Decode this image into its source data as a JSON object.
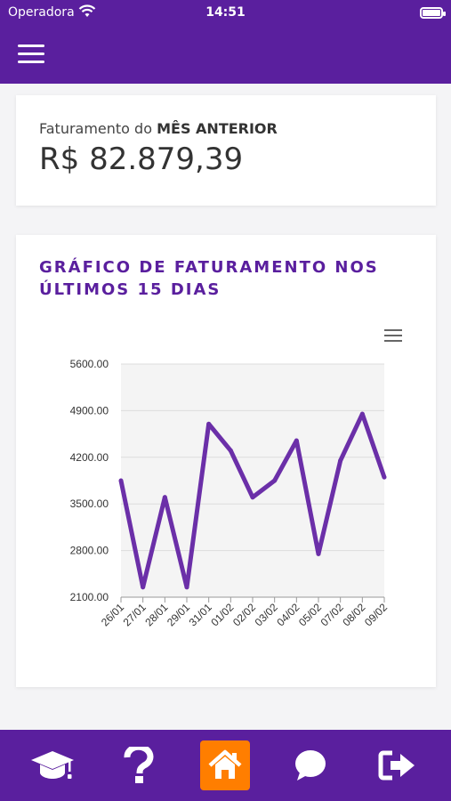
{
  "status_bar": {
    "carrier": "Operadora",
    "time": "14:51"
  },
  "navbar": {
    "menu_icon": "hamburger-menu-icon"
  },
  "revenue_card": {
    "label_prefix": "Faturamento do",
    "label_emphasis": "MÊS ANTERIOR",
    "value": "R$ 82.879,39"
  },
  "chart_card": {
    "title": "GRÁFICO DE FATURAMENTO NOS ÚLTIMOS 15 DIAS",
    "menu_icon": "chart-options-menu-icon"
  },
  "chart_data": {
    "type": "line",
    "title": "GRÁFICO DE FATURAMENTO NOS ÚLTIMOS 15 DIAS",
    "xlabel": "",
    "ylabel": "",
    "categories": [
      "26/01",
      "27/01",
      "28/01",
      "29/01",
      "31/01",
      "01/02",
      "02/02",
      "03/02",
      "04/02",
      "05/02",
      "07/02",
      "08/02",
      "09/02"
    ],
    "values": [
      3850,
      2250,
      3600,
      2250,
      4700,
      4300,
      3600,
      3850,
      4450,
      2750,
      4150,
      4850,
      3900
    ],
    "ylim": [
      2100,
      5600
    ],
    "yticks": [
      "5600.00",
      "4900.00",
      "4200.00",
      "3500.00",
      "2800.00",
      "2100.00"
    ],
    "grid": true,
    "line_color": "#6b2fa8"
  },
  "tab_bar": {
    "items": [
      {
        "icon": "graduation-cap-icon",
        "active": false
      },
      {
        "icon": "question-mark-icon",
        "active": false
      },
      {
        "icon": "home-icon",
        "active": true
      },
      {
        "icon": "chat-bubble-icon",
        "active": false
      },
      {
        "icon": "logout-icon",
        "active": false
      }
    ],
    "active_color": "#ff7e00",
    "bar_color": "#5a1f9e"
  }
}
